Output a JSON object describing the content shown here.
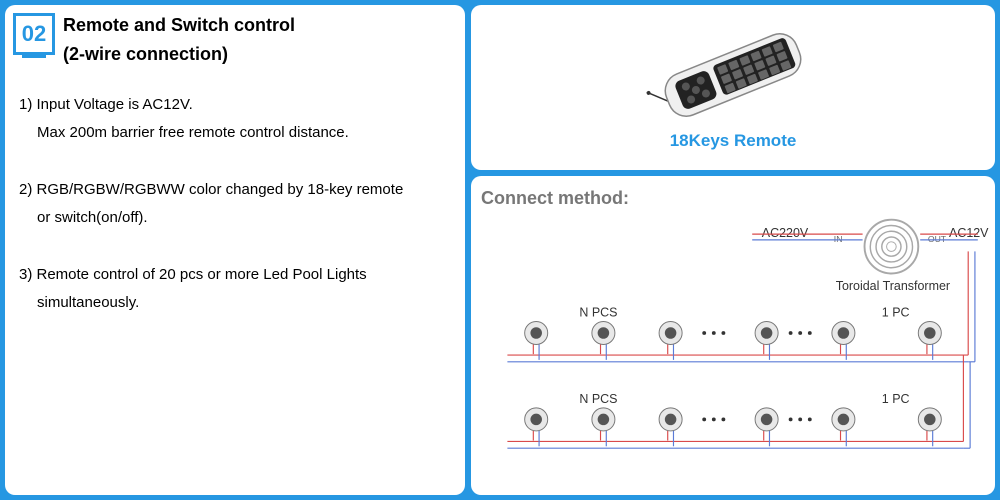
{
  "header": {
    "number": "02",
    "title1": "Remote and Switch control",
    "title2": "(2-wire connection)"
  },
  "bullets": {
    "b1a": "1) Input Voltage is AC12V.",
    "b1b": "Max 200m barrier free remote control distance.",
    "b2a": "2) RGB/RGBW/RGBWW color changed by 18-key remote",
    "b2b": "or switch(on/off).",
    "b3a": "3) Remote control of 20 pcs or more Led Pool Lights",
    "b3b": "simultaneously."
  },
  "remote": {
    "label": "18Keys Remote"
  },
  "connect": {
    "title": "Connect method:",
    "ac_in": "AC220V",
    "in_label": "IN",
    "out_label": "OUT",
    "ac_out": "AC12V",
    "transformer": "Toroidal Transformer",
    "npcs": "N PCS",
    "onepc": "1 PC"
  },
  "colors": {
    "brand": "#2697e2",
    "wire_red": "#d94a4a",
    "wire_blue": "#5b7bd6",
    "grey": "#a8a8a8",
    "dark": "#555"
  }
}
